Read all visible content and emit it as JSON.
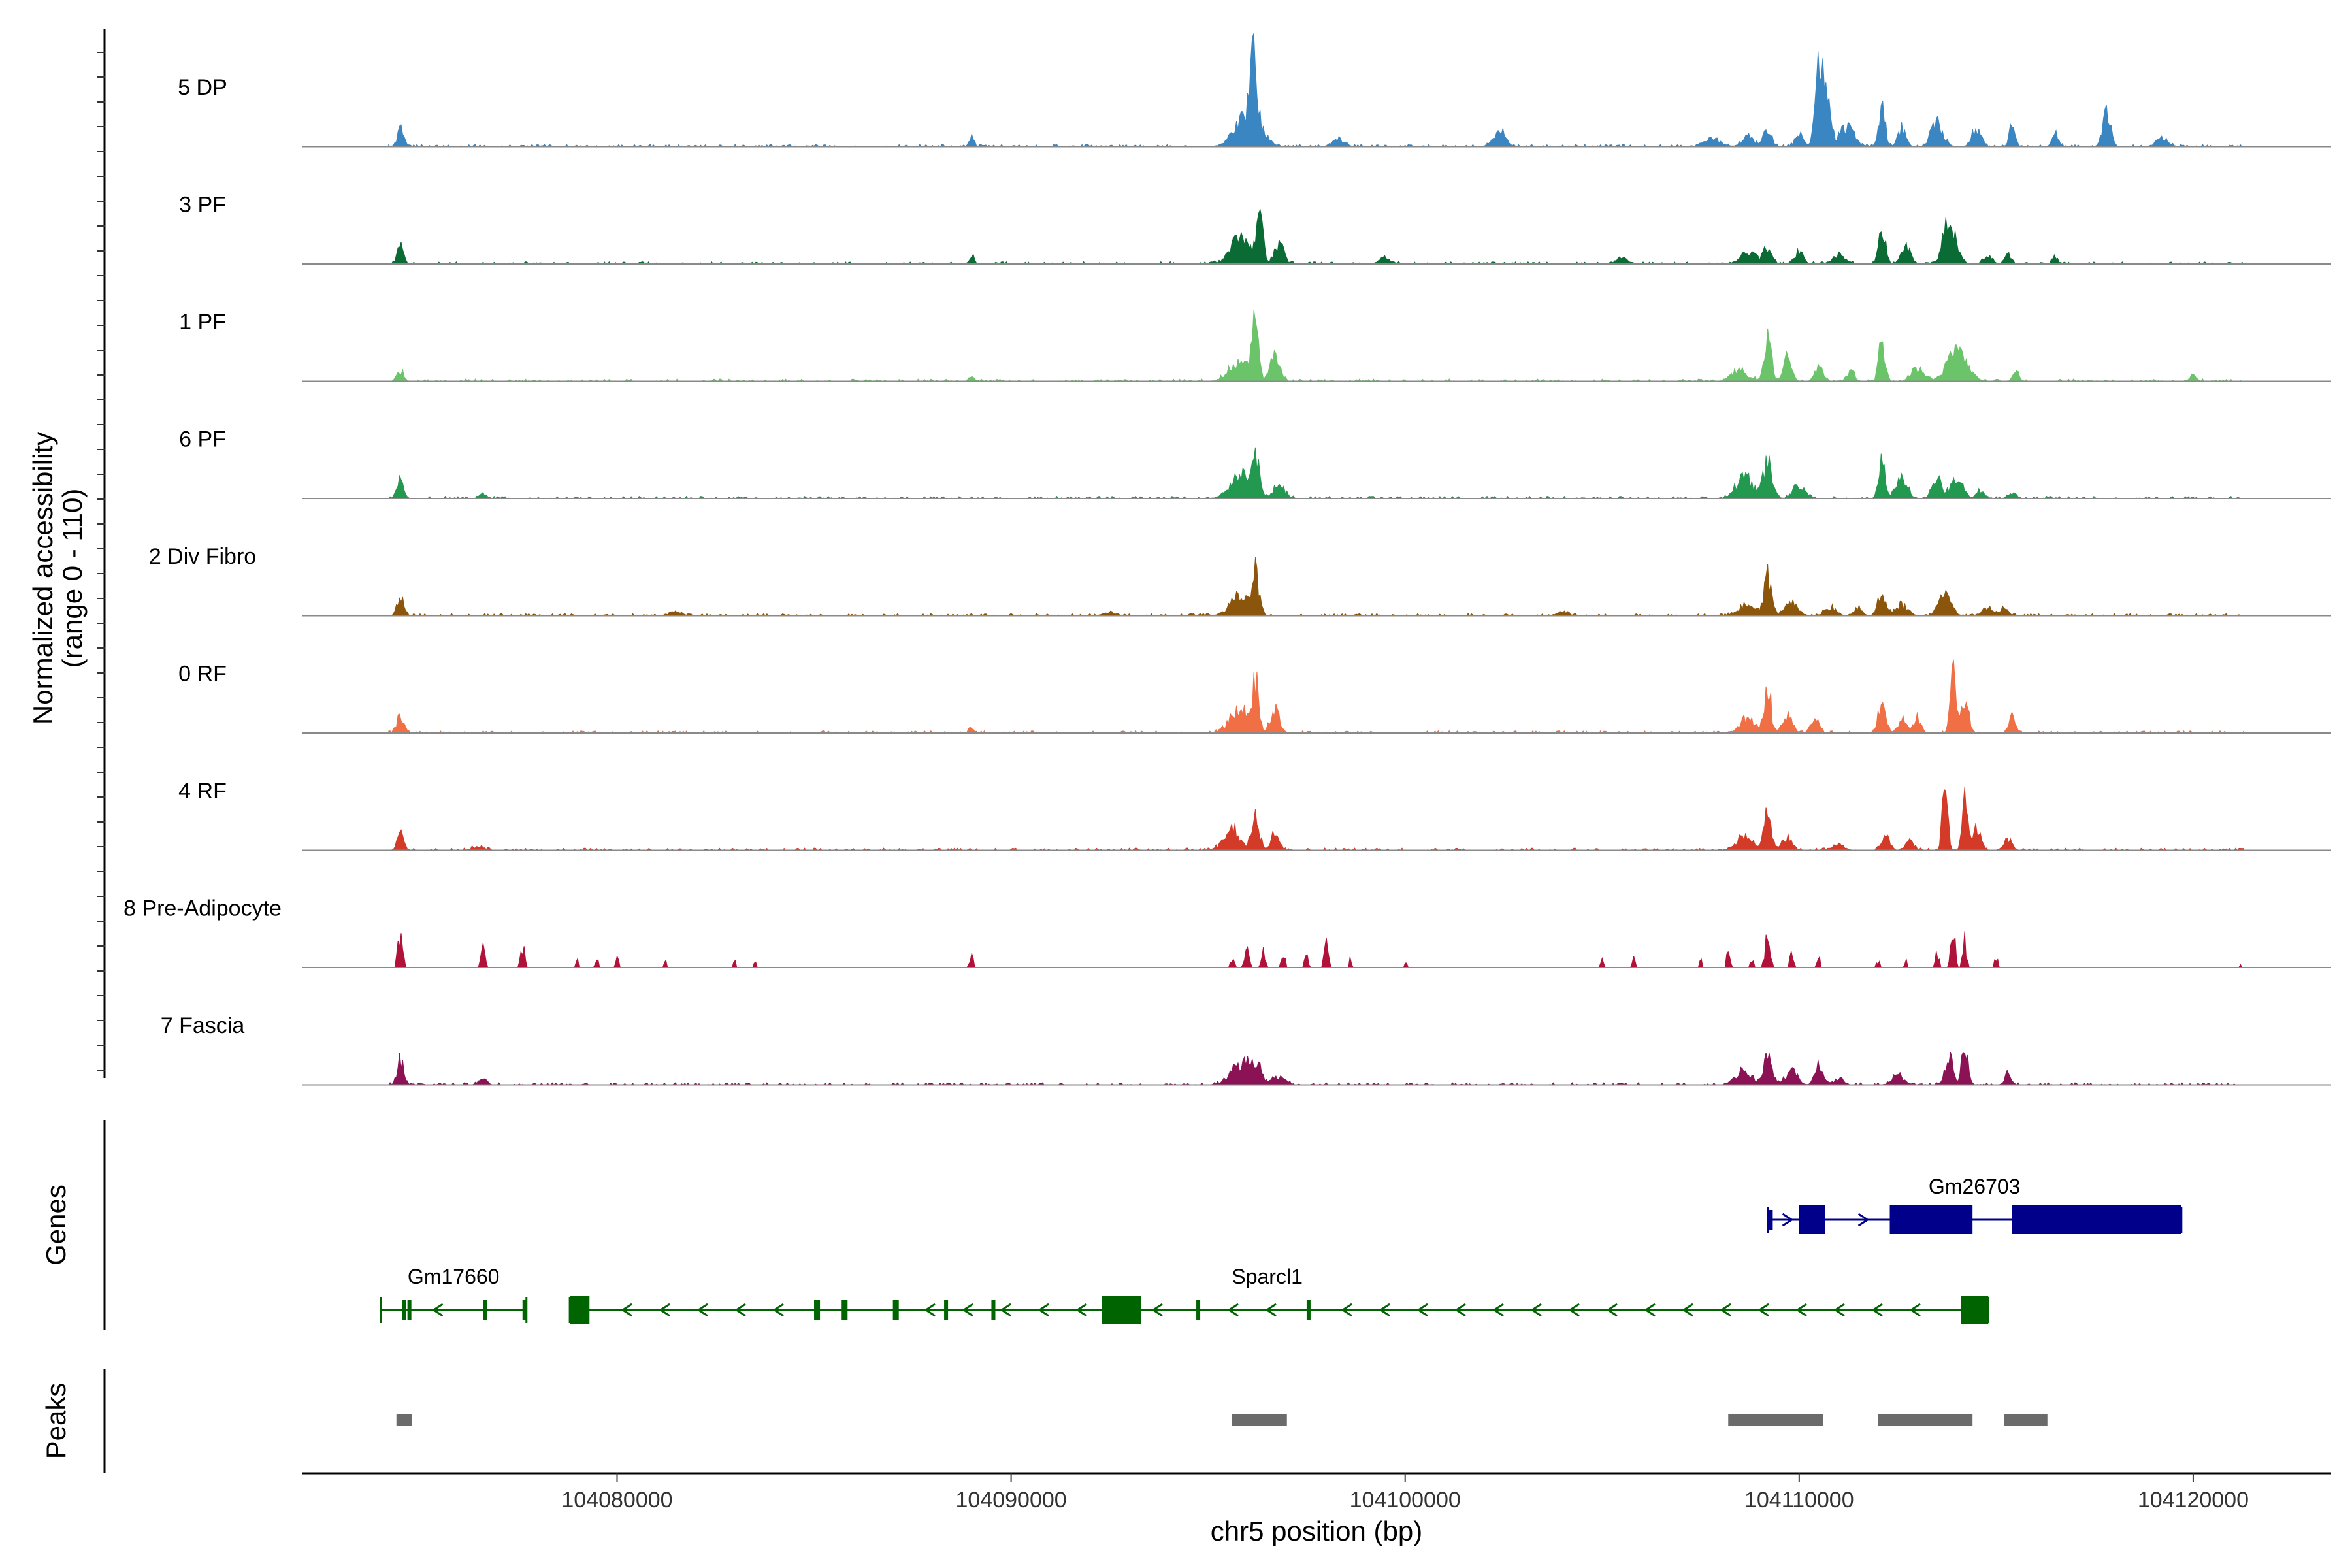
{
  "chart_data": {
    "type": "area",
    "title": "",
    "region": {
      "chrom": "chr5",
      "start": 104072000,
      "end": 104123500
    },
    "xlabel": "chr5 position (bp)",
    "ylabel_line1": "Normalized accessibility",
    "ylabel_line2": "(range 0 - 110)",
    "ylim": [
      0,
      110
    ],
    "x_ticks": [
      104080000,
      104090000,
      104100000,
      104110000,
      104120000
    ],
    "x_tick_labels": [
      "104080000",
      "104090000",
      "104100000",
      "104110000",
      "104120000"
    ],
    "series": [
      {
        "name": "5 DP",
        "color": "#3a86c2",
        "style": "smooth",
        "peaks": [
          [
            104074500,
            18,
            80
          ],
          [
            104089000,
            10,
            60
          ],
          [
            104096000,
            40,
            300
          ],
          [
            104096150,
            70,
            80
          ],
          [
            104098300,
            8,
            150
          ],
          [
            104102400,
            18,
            150
          ],
          [
            104107800,
            8,
            200
          ],
          [
            104108700,
            10,
            150
          ],
          [
            104109200,
            18,
            100
          ],
          [
            104110000,
            14,
            100
          ],
          [
            104110500,
            80,
            90
          ],
          [
            104110700,
            55,
            90
          ],
          [
            104111200,
            20,
            200
          ],
          [
            104112100,
            45,
            80
          ],
          [
            104112600,
            20,
            100
          ],
          [
            104113500,
            25,
            150
          ],
          [
            104114500,
            18,
            120
          ],
          [
            104115400,
            18,
            80
          ],
          [
            104116500,
            12,
            80
          ],
          [
            104117800,
            35,
            100
          ],
          [
            104119200,
            8,
            150
          ]
        ]
      },
      {
        "name": "3 PF",
        "color": "#0a6b35",
        "style": "smooth",
        "peaks": [
          [
            104074500,
            18,
            80
          ],
          [
            104089000,
            8,
            60
          ],
          [
            104095800,
            25,
            250
          ],
          [
            104096300,
            65,
            80
          ],
          [
            104096800,
            20,
            120
          ],
          [
            104099500,
            6,
            150
          ],
          [
            104105500,
            6,
            150
          ],
          [
            104108700,
            12,
            200
          ],
          [
            104109200,
            18,
            100
          ],
          [
            104110000,
            14,
            100
          ],
          [
            104111000,
            10,
            150
          ],
          [
            104112100,
            45,
            80
          ],
          [
            104112700,
            18,
            120
          ],
          [
            104113700,
            35,
            100
          ],
          [
            104113900,
            25,
            150
          ],
          [
            104114800,
            10,
            100
          ],
          [
            104115300,
            10,
            80
          ],
          [
            104116500,
            6,
            80
          ]
        ]
      },
      {
        "name": "1 PF",
        "color": "#6cc46a",
        "style": "smooth",
        "peaks": [
          [
            104074500,
            12,
            80
          ],
          [
            104089000,
            6,
            60
          ],
          [
            104095800,
            20,
            250
          ],
          [
            104096200,
            85,
            70
          ],
          [
            104096700,
            30,
            120
          ],
          [
            104108500,
            12,
            200
          ],
          [
            104109200,
            45,
            90
          ],
          [
            104109700,
            25,
            100
          ],
          [
            104110500,
            15,
            100
          ],
          [
            104111300,
            10,
            100
          ],
          [
            104112100,
            40,
            80
          ],
          [
            104113000,
            15,
            150
          ],
          [
            104114000,
            30,
            250
          ],
          [
            104115500,
            10,
            80
          ],
          [
            104120000,
            6,
            80
          ]
        ]
      },
      {
        "name": "6 PF",
        "color": "#239950",
        "style": "smooth",
        "peaks": [
          [
            104074500,
            22,
            80
          ],
          [
            104076600,
            5,
            80
          ],
          [
            104095800,
            25,
            250
          ],
          [
            104096200,
            40,
            90
          ],
          [
            104096800,
            15,
            150
          ],
          [
            104108600,
            25,
            200
          ],
          [
            104109200,
            35,
            120
          ],
          [
            104110000,
            15,
            150
          ],
          [
            104112100,
            50,
            70
          ],
          [
            104112600,
            20,
            150
          ],
          [
            104113500,
            20,
            120
          ],
          [
            104114000,
            25,
            150
          ],
          [
            104114600,
            8,
            100
          ],
          [
            104115400,
            6,
            100
          ]
        ]
      },
      {
        "name": "2 Div Fibro",
        "color": "#8b560b",
        "style": "smooth",
        "peaks": [
          [
            104074500,
            22,
            80
          ],
          [
            104081500,
            4,
            150
          ],
          [
            104092500,
            4,
            150
          ],
          [
            104095800,
            20,
            250
          ],
          [
            104096200,
            40,
            90
          ],
          [
            104104000,
            4,
            150
          ],
          [
            104108700,
            12,
            200
          ],
          [
            104109200,
            42,
            90
          ],
          [
            104109800,
            15,
            150
          ],
          [
            104110800,
            8,
            150
          ],
          [
            104111500,
            8,
            100
          ],
          [
            104112100,
            25,
            100
          ],
          [
            104112600,
            12,
            150
          ],
          [
            104113700,
            25,
            150
          ],
          [
            104114800,
            8,
            150
          ],
          [
            104115200,
            8,
            100
          ]
        ]
      },
      {
        "name": "0 RF",
        "color": "#f06f45",
        "style": "smooth",
        "peaks": [
          [
            104074500,
            22,
            80
          ],
          [
            104089000,
            6,
            60
          ],
          [
            104095800,
            25,
            250
          ],
          [
            104096200,
            50,
            80
          ],
          [
            104096700,
            25,
            120
          ],
          [
            104108700,
            15,
            200
          ],
          [
            104109200,
            52,
            80
          ],
          [
            104109700,
            20,
            120
          ],
          [
            104110400,
            15,
            100
          ],
          [
            104112100,
            30,
            100
          ],
          [
            104112600,
            15,
            100
          ],
          [
            104113000,
            15,
            100
          ],
          [
            104113900,
            62,
            70
          ],
          [
            104114200,
            40,
            90
          ],
          [
            104115400,
            16,
            80
          ]
        ]
      },
      {
        "name": "4 RF",
        "color": "#d33a27",
        "style": "smooth",
        "peaks": [
          [
            104074500,
            18,
            80
          ],
          [
            104076500,
            4,
            150
          ],
          [
            104095600,
            22,
            200
          ],
          [
            104096200,
            35,
            100
          ],
          [
            104096700,
            20,
            100
          ],
          [
            104108600,
            15,
            200
          ],
          [
            104109200,
            40,
            90
          ],
          [
            104109700,
            15,
            120
          ],
          [
            104111000,
            6,
            150
          ],
          [
            104112200,
            15,
            100
          ],
          [
            104112800,
            10,
            100
          ],
          [
            104113700,
            60,
            70
          ],
          [
            104114200,
            75,
            60
          ],
          [
            104114500,
            25,
            100
          ],
          [
            104115300,
            12,
            100
          ]
        ]
      },
      {
        "name": "8 Pre-Adipocyte",
        "color": "#b0123a",
        "style": "spiky",
        "peaks": [
          [
            104074500,
            35,
            60
          ],
          [
            104076600,
            20,
            60
          ],
          [
            104077600,
            22,
            50
          ],
          [
            104079000,
            8,
            40
          ],
          [
            104079500,
            8,
            40
          ],
          [
            104080000,
            10,
            40
          ],
          [
            104081200,
            10,
            40
          ],
          [
            104083000,
            8,
            40
          ],
          [
            104083500,
            6,
            40
          ],
          [
            104089000,
            18,
            40
          ],
          [
            104095600,
            10,
            60
          ],
          [
            104096000,
            18,
            60
          ],
          [
            104096400,
            16,
            60
          ],
          [
            104096900,
            18,
            50
          ],
          [
            104097500,
            15,
            50
          ],
          [
            104098000,
            28,
            60
          ],
          [
            104098600,
            10,
            40
          ],
          [
            104100000,
            8,
            40
          ],
          [
            104105000,
            8,
            40
          ],
          [
            104105800,
            10,
            40
          ],
          [
            104107500,
            8,
            40
          ],
          [
            104108200,
            14,
            50
          ],
          [
            104108800,
            10,
            40
          ],
          [
            104109200,
            38,
            60
          ],
          [
            104109800,
            15,
            50
          ],
          [
            104110500,
            10,
            40
          ],
          [
            104112000,
            8,
            40
          ],
          [
            104112700,
            8,
            40
          ],
          [
            104113500,
            15,
            50
          ],
          [
            104113900,
            56,
            50
          ],
          [
            104114200,
            28,
            50
          ],
          [
            104115000,
            12,
            40
          ],
          [
            104121200,
            3,
            30
          ]
        ]
      },
      {
        "name": "7 Fascia",
        "color": "#8b1355",
        "style": "smooth",
        "peaks": [
          [
            104074500,
            28,
            80
          ],
          [
            104076600,
            6,
            100
          ],
          [
            104095800,
            20,
            250
          ],
          [
            104096200,
            20,
            150
          ],
          [
            104096800,
            8,
            150
          ],
          [
            104108600,
            15,
            200
          ],
          [
            104109200,
            32,
            100
          ],
          [
            104109800,
            15,
            150
          ],
          [
            104110500,
            20,
            100
          ],
          [
            104111000,
            8,
            100
          ],
          [
            104112500,
            10,
            150
          ],
          [
            104113800,
            30,
            100
          ],
          [
            104114200,
            45,
            80
          ],
          [
            104115300,
            12,
            80
          ]
        ]
      }
    ],
    "genes_axis_label": "Genes",
    "genes": [
      {
        "name": "Gm26703",
        "strand": "+",
        "row": 1,
        "color": "#00008b",
        "start": 104109200,
        "end": 104119700,
        "exons": [
          [
            104109220,
            104109330
          ],
          [
            104110000,
            104110650
          ],
          [
            104112300,
            104114400
          ],
          [
            104115400,
            104119700
          ]
        ]
      },
      {
        "name": "Gm17660",
        "strand": "-",
        "row": 2,
        "color": "#006400",
        "start": 104074000,
        "end": 104077700,
        "exons": [
          [
            104074550,
            104074620
          ],
          [
            104074680,
            104074750
          ],
          [
            104076600,
            104076660
          ],
          [
            104077600,
            104077660
          ]
        ]
      },
      {
        "name": "Sparcl1",
        "strand": "-",
        "row": 2,
        "color": "#006400",
        "start": 104078800,
        "end": 104114800,
        "exons": [
          [
            104078800,
            104079300
          ],
          [
            104085000,
            104085150
          ],
          [
            104085700,
            104085850
          ],
          [
            104087000,
            104087150
          ],
          [
            104088300,
            104088400
          ],
          [
            104089500,
            104089600
          ],
          [
            104092300,
            104093300
          ],
          [
            104094700,
            104094800
          ],
          [
            104097500,
            104097560
          ],
          [
            104114100,
            104114800
          ]
        ]
      }
    ],
    "peaks_axis_label": "Peaks",
    "peak_regions": [
      [
        104074400,
        104074800
      ],
      [
        104095600,
        104097000
      ],
      [
        104108200,
        104110600
      ],
      [
        104112000,
        104114400
      ],
      [
        104115200,
        104116300
      ]
    ]
  }
}
